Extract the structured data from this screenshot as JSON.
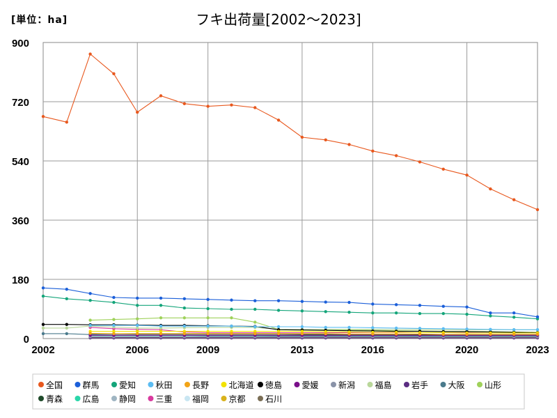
{
  "chart_data": {
    "type": "line",
    "title": "フキ出荷量[2002～2023]",
    "unit_label": "[単位：ha]",
    "y_range": [
      0,
      900
    ],
    "y_ticks": [
      0,
      180,
      360,
      540,
      720,
      900
    ],
    "x_range": [
      2002,
      2023
    ],
    "x_ticks": [
      2002,
      2006,
      2009,
      2013,
      2016,
      2020,
      2023
    ],
    "x_points": [
      2002,
      2003,
      2004,
      2005,
      2006,
      2007,
      2008,
      2009,
      2010,
      2011,
      2012,
      2013,
      2014,
      2015,
      2016,
      2017,
      2018,
      2019,
      2020,
      2021,
      2022,
      2023
    ],
    "grid": true,
    "legend_position": "bottom",
    "series": [
      {
        "name": "全国",
        "color": "#e8581e",
        "values": [
          675,
          658,
          865,
          805,
          688,
          738,
          714,
          706,
          710,
          702,
          664,
          612,
          604,
          590,
          570,
          556,
          537,
          515,
          497,
          455,
          422,
          392
        ]
      },
      {
        "name": "群馬",
        "color": "#1b5fd9",
        "values": [
          154,
          150,
          137,
          125,
          123,
          123,
          121,
          119,
          117,
          115,
          115,
          113,
          111,
          110,
          105,
          103,
          101,
          98,
          96,
          78,
          78,
          66
        ]
      },
      {
        "name": "愛知",
        "color": "#14a57a",
        "values": [
          129,
          121,
          116,
          110,
          101,
          101,
          93,
          91,
          89,
          89,
          86,
          84,
          82,
          80,
          78,
          78,
          76,
          76,
          74,
          69,
          65,
          60
        ]
      },
      {
        "name": "秋田",
        "color": "#5bbcf2",
        "values": [
          null,
          null,
          40,
          40,
          40,
          38,
          38,
          38,
          38,
          36,
          36,
          36,
          34,
          34,
          33,
          32,
          31,
          30,
          29,
          28,
          27,
          27
        ]
      },
      {
        "name": "長野",
        "color": "#f2a417",
        "values": [
          null,
          null,
          16,
          15,
          15,
          15,
          15,
          15,
          15,
          15,
          15,
          15,
          15,
          14,
          14,
          14,
          14,
          13,
          13,
          13,
          13,
          13
        ]
      },
      {
        "name": "北海道",
        "color": "#f2e200",
        "values": [
          null,
          null,
          22,
          22,
          22,
          22,
          22,
          22,
          22,
          22,
          22,
          22,
          21,
          20,
          19,
          19,
          18,
          18,
          17,
          17,
          17,
          17
        ]
      },
      {
        "name": "徳島",
        "color": "#000000",
        "values": [
          43,
          43,
          42,
          42,
          41,
          40,
          40,
          39,
          38,
          37,
          27,
          26,
          25,
          24,
          23,
          22,
          22,
          21,
          21,
          20,
          19,
          18
        ]
      },
      {
        "name": "愛媛",
        "color": "#7a0f8a",
        "values": [
          null,
          null,
          10,
          10,
          10,
          10,
          10,
          10,
          10,
          10,
          10,
          10,
          10,
          10,
          10,
          10,
          10,
          10,
          10,
          10,
          10,
          10
        ]
      },
      {
        "name": "新潟",
        "color": "#8a93a8",
        "values": [
          null,
          null,
          5,
          5,
          5,
          5,
          5,
          5,
          5,
          5,
          5,
          5,
          5,
          5,
          5,
          5,
          5,
          5,
          5,
          5,
          5,
          5
        ]
      },
      {
        "name": "福島",
        "color": "#b9d79a",
        "values": [
          32,
          32,
          38,
          35,
          32,
          32,
          33,
          34,
          34,
          34,
          28,
          28,
          28,
          28,
          28,
          28,
          28,
          27,
          27,
          27,
          27,
          27
        ]
      },
      {
        "name": "岩手",
        "color": "#5b2d82",
        "values": [
          null,
          null,
          2,
          2,
          2,
          2,
          2,
          2,
          2,
          2,
          2,
          2,
          2,
          2,
          2,
          2,
          2,
          2,
          2,
          2,
          2,
          2
        ]
      },
      {
        "name": "大阪",
        "color": "#4a7a8c",
        "values": [
          15,
          15,
          12,
          11,
          10,
          10,
          10,
          9,
          9,
          9,
          8,
          8,
          8,
          8,
          8,
          8,
          8,
          8,
          8,
          8,
          8,
          8
        ]
      },
      {
        "name": "山形",
        "color": "#9fd15a",
        "values": [
          null,
          null,
          56,
          58,
          60,
          63,
          63,
          63,
          63,
          50,
          28,
          27,
          26,
          26,
          25,
          24,
          23,
          22,
          22,
          21,
          20,
          19
        ]
      },
      {
        "name": "青森",
        "color": "#1f4a2a",
        "values": [
          null,
          null,
          15,
          15,
          14,
          14,
          14,
          14,
          14,
          14,
          14,
          13,
          13,
          13,
          13,
          13,
          12,
          12,
          12,
          12,
          12,
          12
        ]
      },
      {
        "name": "広島",
        "color": "#2ad6a9",
        "values": [
          null,
          null,
          6,
          6,
          6,
          6,
          6,
          6,
          6,
          6,
          6,
          6,
          6,
          6,
          6,
          6,
          6,
          6,
          6,
          6,
          6,
          6
        ]
      },
      {
        "name": "静岡",
        "color": "#9fb5c2",
        "values": [
          null,
          null,
          12,
          12,
          12,
          12,
          12,
          12,
          12,
          12,
          12,
          12,
          11,
          11,
          11,
          11,
          11,
          11,
          11,
          11,
          11,
          11
        ]
      },
      {
        "name": "三重",
        "color": "#d93a9e",
        "values": [
          null,
          null,
          34,
          30,
          28,
          27,
          20,
          18,
          18,
          18,
          18,
          18,
          18,
          18,
          18,
          18,
          18,
          18,
          18,
          17,
          17,
          17
        ]
      },
      {
        "name": "福岡",
        "color": "#c9e6f2",
        "values": [
          null,
          null,
          8,
          8,
          8,
          8,
          8,
          8,
          8,
          8,
          8,
          8,
          8,
          8,
          8,
          8,
          8,
          8,
          8,
          8,
          8,
          8
        ]
      },
      {
        "name": "京都",
        "color": "#d9b21b",
        "values": [
          null,
          null,
          9,
          9,
          9,
          9,
          9,
          9,
          9,
          9,
          9,
          9,
          9,
          9,
          9,
          9,
          9,
          9,
          9,
          9,
          9,
          9
        ]
      },
      {
        "name": "石川",
        "color": "#7a6e55",
        "values": [
          null,
          null,
          4,
          4,
          4,
          4,
          4,
          4,
          4,
          4,
          4,
          4,
          4,
          4,
          4,
          4,
          4,
          4,
          4,
          4,
          4,
          4
        ]
      }
    ]
  }
}
